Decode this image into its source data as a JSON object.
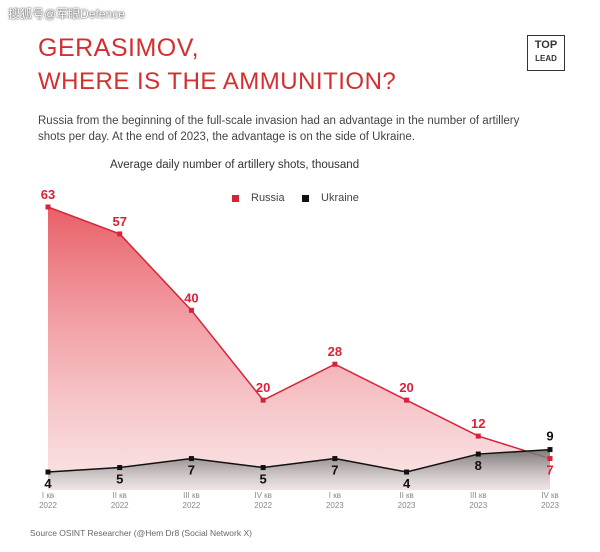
{
  "watermark": "搜狐号@军眼Defence",
  "title_line1": "GERASIMOV,",
  "title_line2": "WHERE IS THE AMMUNITION?",
  "logo_top": "TOP",
  "logo_bottom": "LEAD",
  "subtitle": "Russia from the beginning of the full-scale invasion had an advantage in the number of artillery shots per day. At the end of 2023, the advantage is on the side of Ukraine.",
  "source": "Source OSINT Researcher (@Hem Dr8 (Social Network X)",
  "colors": {
    "title": "#d32f2f",
    "russia": "#d9223a",
    "ukraine": "#111111"
  },
  "chart_data": {
    "type": "area",
    "title": "Average daily number of artillery shots, thousand",
    "categories": [
      [
        "I кв",
        "2022"
      ],
      [
        "II кв",
        "2022"
      ],
      [
        "III кв",
        "2022"
      ],
      [
        "IV кв",
        "2022"
      ],
      [
        "I кв",
        "2023"
      ],
      [
        "II кв",
        "2023"
      ],
      [
        "III кв",
        "2023"
      ],
      [
        "IV кв",
        "2023"
      ]
    ],
    "series": [
      {
        "name": "Russia",
        "values": [
          63,
          57,
          40,
          20,
          28,
          20,
          12,
          7
        ]
      },
      {
        "name": "Ukraine",
        "values": [
          4,
          5,
          7,
          5,
          7,
          4,
          8,
          9
        ]
      }
    ],
    "ylim": [
      0,
      65
    ],
    "legend_position": "top-center",
    "grid": false
  }
}
